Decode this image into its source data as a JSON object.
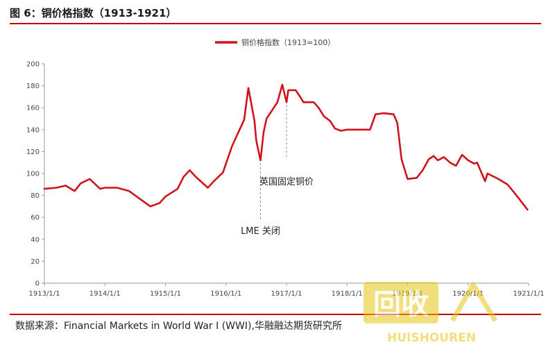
{
  "header": {
    "figure_title": "图 6：铜价格指数（1913-1921）"
  },
  "footer": {
    "source": "数据来源：Financial Markets in World War I (WWI),华融融达期货研究所"
  },
  "watermark": {
    "text_top": "回收",
    "text_bottom": "HUISHOUREN"
  },
  "colors": {
    "series": "#d0121b",
    "rule": "#c00000",
    "axis": "#9a9a9a",
    "annotation_line": "#6a8fb5"
  },
  "chart_data": {
    "type": "line",
    "title": "",
    "xlabel": "",
    "ylabel": "",
    "ylim": [
      0,
      200
    ],
    "y_ticks": [
      0,
      20,
      40,
      60,
      80,
      100,
      120,
      140,
      160,
      180,
      200
    ],
    "x_range": [
      1913.0,
      1921.0
    ],
    "x_ticks": [
      {
        "x": 1913.0,
        "label": "1913/1/1"
      },
      {
        "x": 1914.0,
        "label": "1914/1/1"
      },
      {
        "x": 1915.0,
        "label": "1915/1/1"
      },
      {
        "x": 1916.0,
        "label": "1916/1/1"
      },
      {
        "x": 1917.0,
        "label": "1917/1/1"
      },
      {
        "x": 1918.0,
        "label": "1918/1/1"
      },
      {
        "x": 1919.0,
        "label": "1919/1/1"
      },
      {
        "x": 1920.0,
        "label": "1920/1/1"
      },
      {
        "x": 1921.0,
        "label": "1921/1/1"
      }
    ],
    "legend": {
      "position": "top-center"
    },
    "grid": false,
    "series": [
      {
        "name": "铜价格指数（1913=100）",
        "points": [
          [
            1913.0,
            86
          ],
          [
            1913.2,
            87
          ],
          [
            1913.35,
            89
          ],
          [
            1913.5,
            84
          ],
          [
            1913.6,
            91
          ],
          [
            1913.75,
            95
          ],
          [
            1913.92,
            86
          ],
          [
            1914.0,
            87
          ],
          [
            1914.2,
            87
          ],
          [
            1914.4,
            84
          ],
          [
            1914.55,
            78
          ],
          [
            1914.75,
            70
          ],
          [
            1914.9,
            73
          ],
          [
            1915.0,
            79
          ],
          [
            1915.2,
            86
          ],
          [
            1915.3,
            97
          ],
          [
            1915.4,
            103
          ],
          [
            1915.5,
            97
          ],
          [
            1915.7,
            87
          ],
          [
            1915.8,
            93
          ],
          [
            1915.95,
            101
          ],
          [
            1916.1,
            125
          ],
          [
            1916.3,
            149
          ],
          [
            1916.37,
            178
          ],
          [
            1916.43,
            160
          ],
          [
            1916.47,
            148
          ],
          [
            1916.5,
            130
          ],
          [
            1916.57,
            112
          ],
          [
            1916.62,
            137
          ],
          [
            1916.67,
            150
          ],
          [
            1916.85,
            165
          ],
          [
            1916.93,
            181
          ],
          [
            1917.0,
            165
          ],
          [
            1917.03,
            176
          ],
          [
            1917.15,
            176
          ],
          [
            1917.2,
            172
          ],
          [
            1917.28,
            165
          ],
          [
            1917.45,
            165
          ],
          [
            1917.53,
            160
          ],
          [
            1917.62,
            152
          ],
          [
            1917.72,
            148
          ],
          [
            1917.8,
            141
          ],
          [
            1917.9,
            139
          ],
          [
            1918.0,
            140
          ],
          [
            1918.2,
            140
          ],
          [
            1918.38,
            140
          ],
          [
            1918.47,
            154
          ],
          [
            1918.6,
            155
          ],
          [
            1918.77,
            154
          ],
          [
            1918.83,
            146
          ],
          [
            1918.9,
            113
          ],
          [
            1919.0,
            95
          ],
          [
            1919.15,
            96
          ],
          [
            1919.25,
            103
          ],
          [
            1919.35,
            113
          ],
          [
            1919.43,
            116
          ],
          [
            1919.5,
            112
          ],
          [
            1919.6,
            115
          ],
          [
            1919.7,
            110
          ],
          [
            1919.8,
            107
          ],
          [
            1919.9,
            117
          ],
          [
            1920.0,
            112
          ],
          [
            1920.1,
            109
          ],
          [
            1920.15,
            110
          ],
          [
            1920.28,
            93
          ],
          [
            1920.32,
            100
          ],
          [
            1920.5,
            95
          ],
          [
            1920.65,
            90
          ],
          [
            1920.8,
            80
          ],
          [
            1920.98,
            67
          ]
        ]
      }
    ],
    "annotations": [
      {
        "text": "LME 关闭",
        "x": 1916.57,
        "y": 112,
        "label_y": 45,
        "line_to": 58
      },
      {
        "text": "英国固定铜价",
        "x": 1917.0,
        "y": 165,
        "label_y": 90,
        "line_to": 113
      }
    ]
  }
}
